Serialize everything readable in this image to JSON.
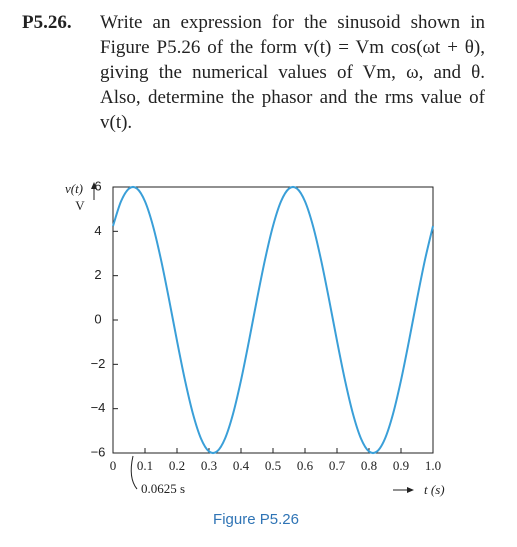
{
  "problem": {
    "number": "P5.26.",
    "text": "Write an expression for the sinusoid shown in Figure P5.26 of the form v(t) = Vm cos(ωt + θ), giving the numerical values of Vm, ω, and θ. Also, determine the phasor and the rms value of v(t)."
  },
  "chart_data": {
    "type": "line",
    "caption": "Figure P5.26",
    "y_label": "v(t)",
    "y_unit": "V",
    "x_label": "t (s)",
    "annotation": {
      "text": "0.0625 s",
      "x": 0.0625
    },
    "x": [
      0,
      0.025,
      0.05,
      0.075,
      0.1,
      0.125,
      0.15,
      0.175,
      0.2,
      0.225,
      0.25,
      0.275,
      0.3,
      0.325,
      0.35,
      0.375,
      0.4,
      0.425,
      0.45,
      0.475,
      0.5,
      0.525,
      0.55,
      0.575,
      0.6,
      0.625,
      0.65,
      0.675,
      0.7,
      0.725,
      0.75,
      0.775,
      0.8,
      0.825,
      0.85,
      0.875,
      0.9,
      0.925,
      0.95,
      0.975,
      1.0
    ],
    "values": [
      4.24,
      5.35,
      5.93,
      5.93,
      5.35,
      4.24,
      2.72,
      0.94,
      -0.94,
      -2.72,
      -4.24,
      -5.35,
      -5.93,
      -5.93,
      -5.35,
      -4.24,
      -2.72,
      -0.94,
      0.94,
      2.72,
      4.24,
      5.35,
      5.93,
      5.93,
      5.35,
      4.24,
      2.72,
      0.94,
      -0.94,
      -2.72,
      -4.24,
      -5.35,
      -5.93,
      -5.93,
      -5.35,
      -4.24,
      -2.72,
      -0.94,
      0.94,
      2.72,
      4.24
    ],
    "color": "#3a9fd8",
    "xlim": [
      0,
      1.0
    ],
    "ylim": [
      -6,
      6
    ],
    "xticks": [
      0,
      0.1,
      0.2,
      0.3,
      0.4,
      0.5,
      0.6,
      0.7,
      0.8,
      0.9,
      {
        "value": 1,
        "label": "1.0"
      }
    ],
    "yticks": [
      {
        "value": -6,
        "label": "−6"
      },
      {
        "value": -4,
        "label": "−4"
      },
      {
        "value": -2,
        "label": "−2"
      },
      0,
      2,
      4,
      6
    ],
    "grid": false
  }
}
